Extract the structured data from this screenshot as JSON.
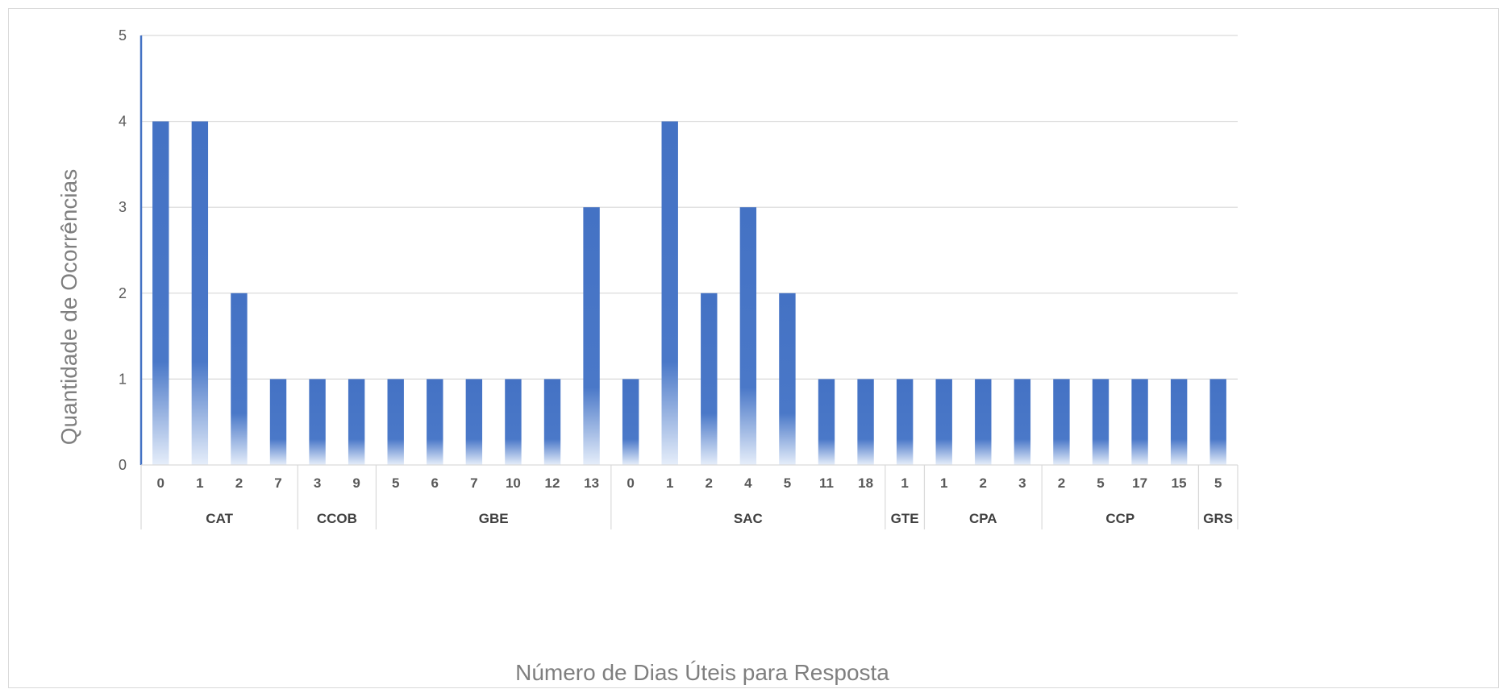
{
  "colors": {
    "bar": "#4472c4",
    "bar_light": "#dbe5f5",
    "grid": "#d9d9d9",
    "axis": "#4472c4",
    "text": "#595959",
    "group_text": "#404040"
  },
  "chart_data": {
    "type": "bar",
    "title": "",
    "xlabel": "Número de Dias Úteis  para Resposta",
    "ylabel": "Quantidade de Ocorrências",
    "ylim": [
      0,
      5
    ],
    "yticks": [
      0,
      1,
      2,
      3,
      4,
      5
    ],
    "grid": true,
    "legend": "none",
    "groups": [
      {
        "name": "CAT",
        "categories": [
          "0",
          "1",
          "2",
          "7"
        ],
        "values": [
          4,
          4,
          2,
          1
        ]
      },
      {
        "name": "CCOB",
        "categories": [
          "3",
          "9"
        ],
        "values": [
          1,
          1
        ]
      },
      {
        "name": "GBE",
        "categories": [
          "5",
          "6",
          "7",
          "10",
          "12",
          "13"
        ],
        "values": [
          1,
          1,
          1,
          1,
          1,
          3
        ]
      },
      {
        "name": "SAC",
        "categories": [
          "0",
          "1",
          "2",
          "4",
          "5",
          "11",
          "18"
        ],
        "values": [
          1,
          4,
          2,
          3,
          2,
          1,
          1
        ]
      },
      {
        "name": "GTE",
        "categories": [
          "1"
        ],
        "values": [
          1
        ]
      },
      {
        "name": "CPA",
        "categories": [
          "1",
          "2",
          "3"
        ],
        "values": [
          1,
          1,
          1
        ]
      },
      {
        "name": "CCP",
        "categories": [
          "2",
          "5",
          "17",
          "15"
        ],
        "values": [
          1,
          1,
          1,
          1
        ]
      },
      {
        "name": "GRS",
        "categories": [
          "5"
        ],
        "values": [
          1
        ]
      }
    ]
  }
}
